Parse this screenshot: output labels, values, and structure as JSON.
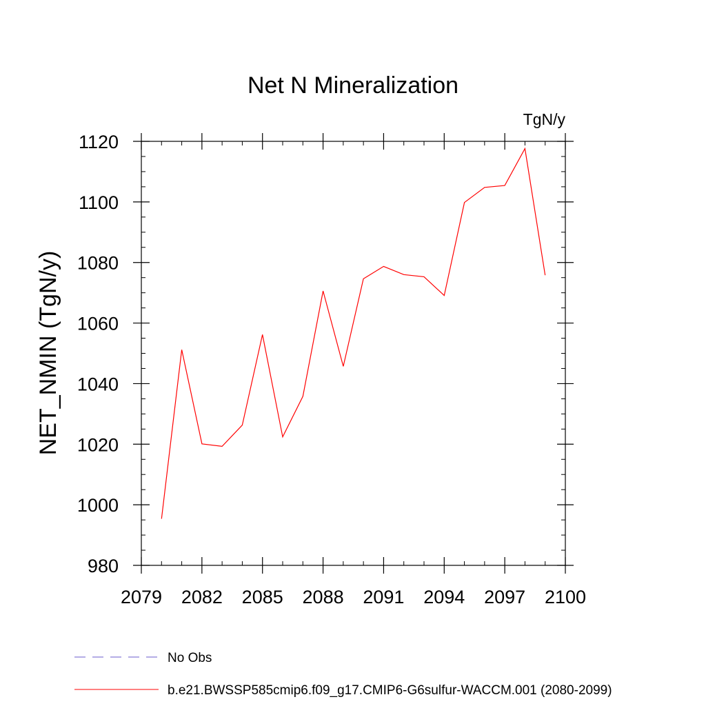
{
  "chart_data": {
    "type": "line",
    "title": "Net N Mineralization",
    "units": "TgN/y",
    "ylabel": "NET_NMIN  (TgN/y)",
    "xlabel": "",
    "xlim": [
      2079,
      2100
    ],
    "ylim": [
      980,
      1120
    ],
    "x_ticks": [
      2079,
      2082,
      2085,
      2088,
      2091,
      2094,
      2097,
      2100
    ],
    "y_ticks": [
      980,
      1000,
      1020,
      1040,
      1060,
      1080,
      1100,
      1120
    ],
    "x_minor_step": 1,
    "y_minor_step": 5,
    "grid": false,
    "legend_placement": "bottom",
    "series": [
      {
        "name": "b.e21.BWSSP585cmip6.f09_g17.CMIP6-G6sulfur-WACCM.001 (2080-2099)",
        "color": "#ff0000",
        "style": "solid",
        "x": [
          2080,
          2081,
          2082,
          2083,
          2084,
          2085,
          2086,
          2087,
          2088,
          2089,
          2090,
          2091,
          2092,
          2093,
          2094,
          2095,
          2096,
          2097,
          2098,
          2099
        ],
        "y": [
          995.4,
          1051.2,
          1020.1,
          1019.3,
          1026.3,
          1056.2,
          1022.4,
          1035.8,
          1070.6,
          1045.7,
          1074.6,
          1078.7,
          1076.0,
          1075.3,
          1069.1,
          1099.8,
          1104.8,
          1105.4,
          1117.6,
          1075.8
        ]
      }
    ],
    "legend": [
      {
        "label": "No Obs",
        "color": "#6a5acd",
        "style": "dashed"
      },
      {
        "label": "b.e21.BWSSP585cmip6.f09_g17.CMIP6-G6sulfur-WACCM.001 (2080-2099)",
        "color": "#ff0000",
        "style": "solid"
      }
    ]
  }
}
